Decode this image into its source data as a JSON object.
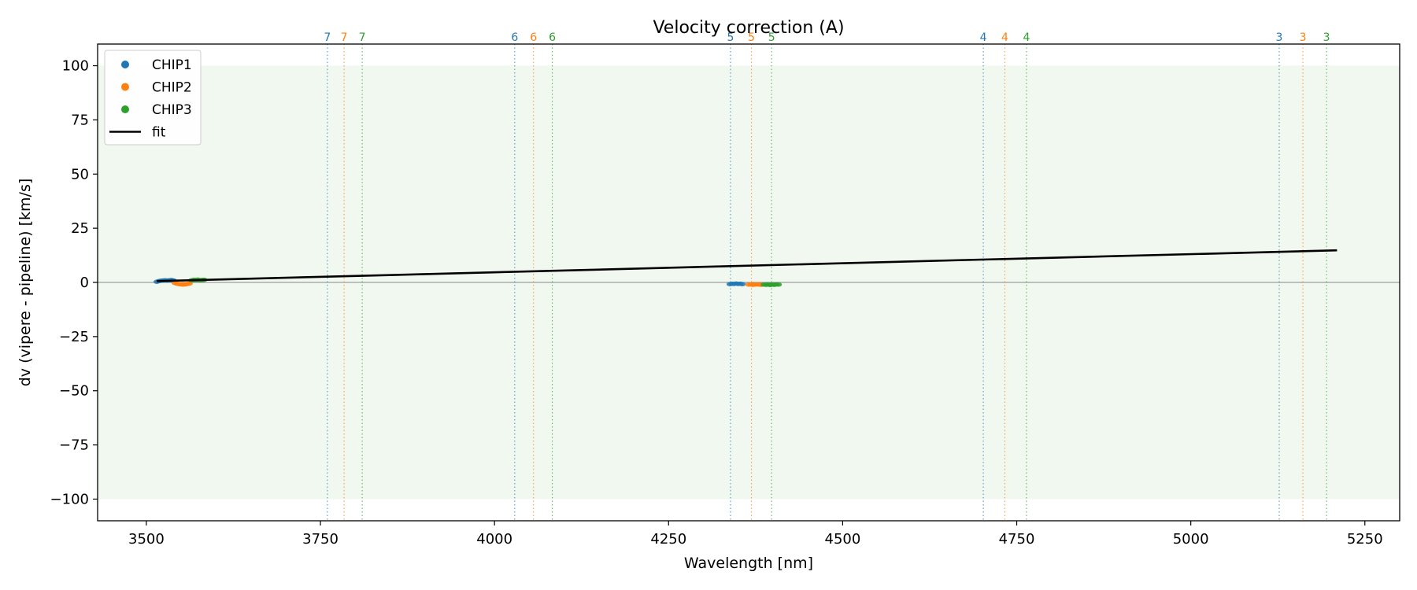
{
  "chart_data": {
    "type": "scatter",
    "title": "Velocity correction (A)",
    "xlabel": "Wavelength [nm]",
    "ylabel": "dv (vipere - pipeline) [km/s]",
    "xlim": [
      3430,
      5300
    ],
    "ylim": [
      -110,
      110
    ],
    "xticks": [
      3500,
      3750,
      4000,
      4250,
      4500,
      4750,
      5000,
      5250
    ],
    "yticks": [
      100,
      75,
      50,
      25,
      0,
      -25,
      -50,
      -75,
      -100
    ],
    "grid": false,
    "shaded_band": {
      "y0": -100,
      "y1": 100,
      "color": "#2ca02c"
    },
    "zero_line": {
      "y": 0,
      "color": "#888888"
    },
    "legend_position": "top-left",
    "series": [
      {
        "name": "CHIP1",
        "color": "#1f77b4",
        "marker": "point",
        "x": [
          3515,
          3518,
          3521,
          3524,
          3527,
          3530,
          3533,
          3536,
          3539,
          4338,
          4341,
          4344,
          4347,
          4350,
          4353,
          4356
        ],
        "y": [
          0.3,
          0.6,
          0.8,
          0.9,
          1.0,
          0.9,
          1.0,
          1.1,
          0.9,
          -0.8,
          -0.6,
          -0.7,
          -0.5,
          -0.7,
          -0.6,
          -0.8
        ]
      },
      {
        "name": "CHIP2",
        "color": "#ff7f0e",
        "marker": "point",
        "x": [
          3541,
          3544,
          3547,
          3550,
          3553,
          3556,
          3559,
          3562,
          4365,
          4368,
          4371,
          4374,
          4377,
          4380,
          4383
        ],
        "y": [
          -0.3,
          -0.6,
          -0.8,
          -0.9,
          -1.0,
          -0.9,
          -0.7,
          -0.5,
          -1.0,
          -0.9,
          -1.1,
          -1.0,
          -0.9,
          -1.0,
          -1.1
        ]
      },
      {
        "name": "CHIP3",
        "color": "#2ca02c",
        "marker": "point",
        "x": [
          3565,
          3568,
          3571,
          3574,
          3577,
          3580,
          3583,
          4387,
          4390,
          4393,
          4396,
          4399,
          4402,
          4405,
          4408
        ],
        "y": [
          1.0,
          1.2,
          1.1,
          1.3,
          1.0,
          1.1,
          1.2,
          -1.0,
          -1.1,
          -0.9,
          -1.2,
          -1.0,
          -1.1,
          -0.9,
          -1.0
        ]
      },
      {
        "name": "fit",
        "color": "#000000",
        "marker": "line",
        "x": [
          3515,
          5210
        ],
        "y": [
          0.6,
          14.8
        ]
      }
    ],
    "order_markers": [
      {
        "label": "7",
        "x": 3760,
        "color": "#1f77b4"
      },
      {
        "label": "7",
        "x": 3784,
        "color": "#ff7f0e"
      },
      {
        "label": "7",
        "x": 3810,
        "color": "#2ca02c"
      },
      {
        "label": "6",
        "x": 4029,
        "color": "#1f77b4"
      },
      {
        "label": "6",
        "x": 4056,
        "color": "#ff7f0e"
      },
      {
        "label": "6",
        "x": 4083,
        "color": "#2ca02c"
      },
      {
        "label": "5",
        "x": 4339,
        "color": "#1f77b4"
      },
      {
        "label": "5",
        "x": 4369,
        "color": "#ff7f0e"
      },
      {
        "label": "5",
        "x": 4398,
        "color": "#2ca02c"
      },
      {
        "label": "4",
        "x": 4702,
        "color": "#1f77b4"
      },
      {
        "label": "4",
        "x": 4733,
        "color": "#ff7f0e"
      },
      {
        "label": "4",
        "x": 4764,
        "color": "#2ca02c"
      },
      {
        "label": "3",
        "x": 5127,
        "color": "#1f77b4"
      },
      {
        "label": "3",
        "x": 5161,
        "color": "#ff7f0e"
      },
      {
        "label": "3",
        "x": 5195,
        "color": "#2ca02c"
      }
    ]
  }
}
